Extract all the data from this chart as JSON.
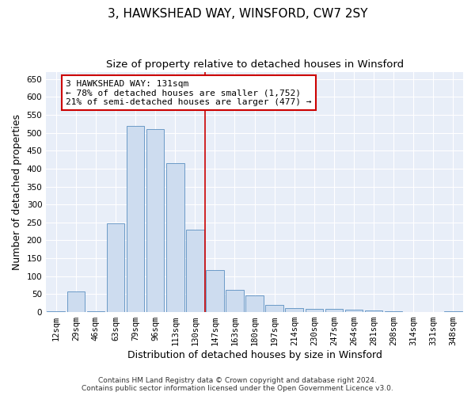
{
  "title": "3, HAWKSHEAD WAY, WINSFORD, CW7 2SY",
  "subtitle": "Size of property relative to detached houses in Winsford",
  "xlabel": "Distribution of detached houses by size in Winsford",
  "ylabel": "Number of detached properties",
  "bin_labels": [
    "12sqm",
    "29sqm",
    "46sqm",
    "63sqm",
    "79sqm",
    "96sqm",
    "113sqm",
    "130sqm",
    "147sqm",
    "163sqm",
    "180sqm",
    "197sqm",
    "214sqm",
    "230sqm",
    "247sqm",
    "264sqm",
    "281sqm",
    "298sqm",
    "314sqm",
    "331sqm",
    "348sqm"
  ],
  "bar_values": [
    2,
    58,
    3,
    248,
    520,
    510,
    415,
    230,
    118,
    62,
    47,
    20,
    12,
    10,
    8,
    7,
    5,
    3,
    1,
    0,
    2
  ],
  "bar_color": "#cddcef",
  "bar_edge_color": "#5a8ec0",
  "ylim": [
    0,
    670
  ],
  "yticks": [
    0,
    50,
    100,
    150,
    200,
    250,
    300,
    350,
    400,
    450,
    500,
    550,
    600,
    650
  ],
  "property_line_x": 7.5,
  "property_line_color": "#cc0000",
  "annotation_text": "3 HAWKSHEAD WAY: 131sqm\n← 78% of detached houses are smaller (1,752)\n21% of semi-detached houses are larger (477) →",
  "annotation_box_color": "#ffffff",
  "annotation_box_edge_color": "#cc0000",
  "footer_line1": "Contains HM Land Registry data © Crown copyright and database right 2024.",
  "footer_line2": "Contains public sector information licensed under the Open Government Licence v3.0.",
  "background_color": "#e8eef8",
  "grid_color": "#ffffff",
  "fig_background": "#ffffff",
  "title_fontsize": 11,
  "subtitle_fontsize": 9.5,
  "axis_label_fontsize": 9,
  "tick_fontsize": 7.5,
  "annotation_fontsize": 8,
  "footer_fontsize": 6.5
}
